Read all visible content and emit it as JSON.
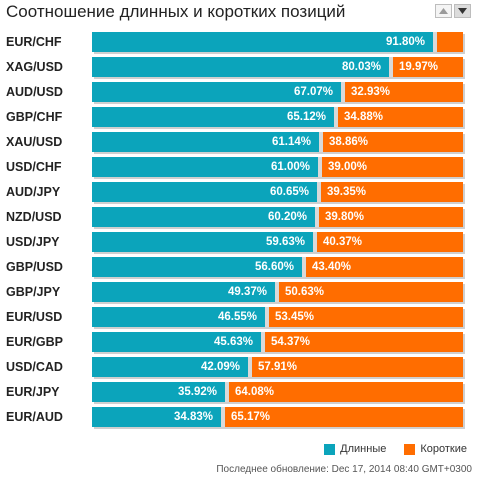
{
  "title": "Соотношение длинных и коротких позиций",
  "icons": {
    "sort_up": "triangle-up-icon",
    "sort_down": "triangle-down-icon"
  },
  "colors": {
    "long": "#0ba4bb",
    "short": "#ff6d00",
    "track": "#d9d9d9"
  },
  "chart_data": {
    "type": "bar",
    "orientation": "horizontal",
    "stacked": true,
    "categories": [
      "EUR/CHF",
      "XAG/USD",
      "AUD/USD",
      "GBP/CHF",
      "XAU/USD",
      "USD/CHF",
      "AUD/JPY",
      "NZD/USD",
      "USD/JPY",
      "GBP/USD",
      "GBP/JPY",
      "EUR/USD",
      "EUR/GBP",
      "USD/CAD",
      "EUR/JPY",
      "EUR/AUD"
    ],
    "series": [
      {
        "name": "Длинные",
        "values": [
          91.8,
          80.03,
          67.07,
          65.12,
          61.14,
          61.0,
          60.65,
          60.2,
          59.63,
          56.6,
          49.37,
          46.55,
          45.63,
          42.09,
          35.92,
          34.83
        ],
        "labels": [
          "91.80%",
          "80.03%",
          "67.07%",
          "65.12%",
          "61.14%",
          "61.00%",
          "60.65%",
          "60.20%",
          "59.63%",
          "56.60%",
          "49.37%",
          "46.55%",
          "45.63%",
          "42.09%",
          "35.92%",
          "34.83%"
        ]
      },
      {
        "name": "Короткие",
        "values": [
          8.2,
          19.97,
          32.93,
          34.88,
          38.86,
          39.0,
          39.35,
          39.8,
          40.37,
          43.4,
          50.63,
          53.45,
          54.37,
          57.91,
          64.08,
          65.17
        ],
        "labels": [
          "",
          "19.97%",
          "32.93%",
          "34.88%",
          "38.86%",
          "39.00%",
          "39.35%",
          "39.80%",
          "40.37%",
          "43.40%",
          "50.63%",
          "53.45%",
          "54.37%",
          "57.91%",
          "64.08%",
          "65.17%"
        ]
      }
    ],
    "xlim": [
      0,
      100
    ],
    "legend_position": "bottom-right"
  },
  "legend": {
    "long_label": "Длинные",
    "short_label": "Короткие"
  },
  "footer": {
    "updated": "Последнее обновление: Dec 17, 2014 08:40 GMT+0300"
  }
}
